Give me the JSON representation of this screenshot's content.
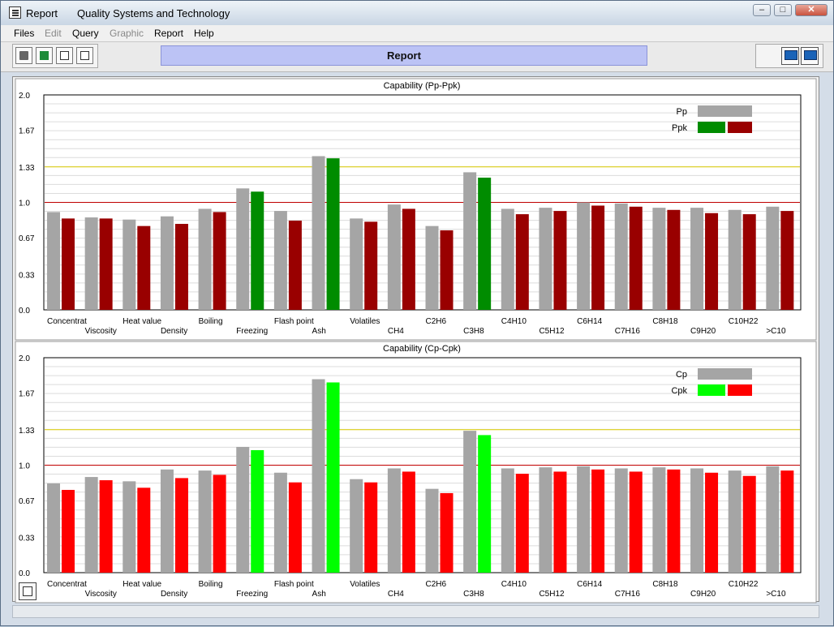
{
  "window": {
    "title": "Report",
    "app_name": "Quality Systems and Technology"
  },
  "menu": [
    "Files",
    "Edit",
    "Query",
    "Graphic",
    "Report",
    "Help"
  ],
  "menu_disabled": [
    "Edit",
    "Graphic"
  ],
  "toolbar": {
    "banner": "Report",
    "buttons": [
      "print-icon",
      "excel-export-icon",
      "search-doc-icon",
      "edit-doc-icon"
    ],
    "view_buttons": [
      "monitor-icon",
      "monitor-icon"
    ]
  },
  "colors": {
    "background_bar": "#a5a5a5",
    "pp_below": "#990000",
    "pp_above": "#008c00",
    "cp_below": "#ff0000",
    "cp_above": "#00ff00",
    "ref_line_1": "#c00000",
    "ref_line_133": "#e0d000"
  },
  "chart_data": [
    {
      "type": "bar",
      "title": "Capability (Pp-Ppk)",
      "categories": [
        "Concentrat",
        "Viscosity",
        "Heat value",
        "Density",
        "Boiling",
        "Freezing",
        "Flash point",
        "Ash",
        "Volatiles",
        "CH4",
        "C2H6",
        "C3H8",
        "C4H10",
        "C5H12",
        "C6H14",
        "C7H16",
        "C8H18",
        "C9H20",
        "C10H22",
        ">C10"
      ],
      "series": [
        {
          "name": "Pp",
          "values": [
            0.91,
            0.86,
            0.84,
            0.87,
            0.94,
            1.13,
            0.92,
            1.43,
            0.85,
            0.98,
            0.78,
            1.28,
            0.94,
            0.95,
            1.0,
            0.99,
            0.95,
            0.95,
            0.93,
            0.96
          ]
        },
        {
          "name": "Ppk",
          "values": [
            0.85,
            0.85,
            0.78,
            0.8,
            0.91,
            1.1,
            0.83,
            1.41,
            0.82,
            0.94,
            0.74,
            1.23,
            0.89,
            0.92,
            0.97,
            0.96,
            0.93,
            0.9,
            0.89,
            0.92
          ]
        }
      ],
      "ylim": [
        0.0,
        2.0
      ],
      "yticks": [
        "0.0",
        "0.33",
        "0.67",
        "1.0",
        "1.33",
        "1.67",
        "2.0"
      ],
      "reference_lines": [
        1.0,
        1.33
      ],
      "legend": [
        "Pp",
        "Ppk"
      ],
      "legend_position": "top-right",
      "grid": true
    },
    {
      "type": "bar",
      "title": "Capability (Cp-Cpk)",
      "categories": [
        "Concentrat",
        "Viscosity",
        "Heat value",
        "Density",
        "Boiling",
        "Freezing",
        "Flash point",
        "Ash",
        "Volatiles",
        "CH4",
        "C2H6",
        "C3H8",
        "C4H10",
        "C5H12",
        "C6H14",
        "C7H16",
        "C8H18",
        "C9H20",
        "C10H22",
        ">C10"
      ],
      "series": [
        {
          "name": "Cp",
          "values": [
            0.83,
            0.89,
            0.85,
            0.96,
            0.95,
            1.17,
            0.93,
            1.8,
            0.87,
            0.97,
            0.78,
            1.32,
            0.97,
            0.98,
            0.99,
            0.97,
            0.98,
            0.97,
            0.95,
            0.99
          ]
        },
        {
          "name": "Cpk",
          "values": [
            0.77,
            0.86,
            0.79,
            0.88,
            0.91,
            1.14,
            0.84,
            1.77,
            0.84,
            0.94,
            0.74,
            1.28,
            0.92,
            0.94,
            0.96,
            0.94,
            0.96,
            0.93,
            0.9,
            0.95
          ]
        }
      ],
      "ylim": [
        0.0,
        2.0
      ],
      "yticks": [
        "0.0",
        "0.33",
        "0.67",
        "1.0",
        "1.33",
        "1.67",
        "2.0"
      ],
      "reference_lines": [
        1.0,
        1.33
      ],
      "legend": [
        "Cp",
        "Cpk"
      ],
      "legend_position": "top-right",
      "grid": true
    }
  ]
}
